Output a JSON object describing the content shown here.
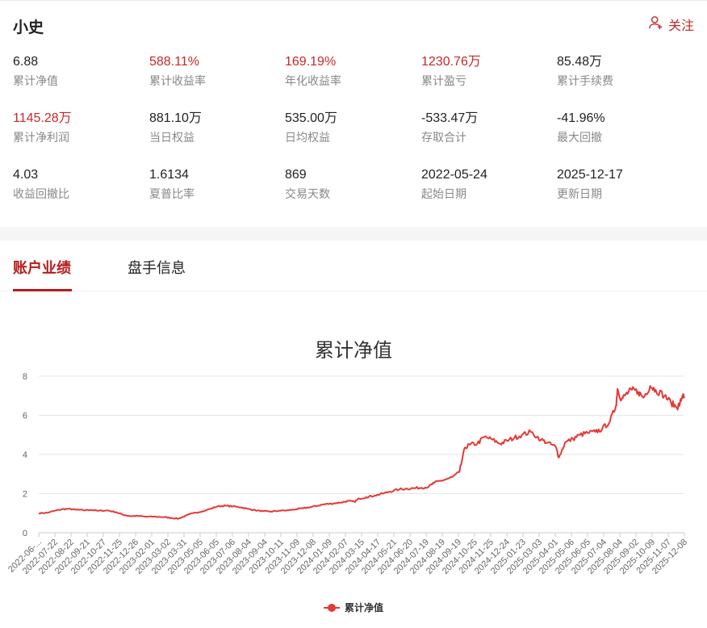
{
  "header": {
    "trader_name": "小史",
    "follow_label": "关注"
  },
  "stats": [
    {
      "value": "6.88",
      "label": "累计净值",
      "highlight": false
    },
    {
      "value": "588.11%",
      "label": "累计收益率",
      "highlight": true
    },
    {
      "value": "169.19%",
      "label": "年化收益率",
      "highlight": true
    },
    {
      "value": "1230.76万",
      "label": "累计盈亏",
      "highlight": true
    },
    {
      "value": "85.48万",
      "label": "累计手续费",
      "highlight": false
    },
    {
      "value": "1145.28万",
      "label": "累计净利润",
      "highlight": true
    },
    {
      "value": "881.10万",
      "label": "当日权益",
      "highlight": false
    },
    {
      "value": "535.00万",
      "label": "日均权益",
      "highlight": false
    },
    {
      "value": "-533.47万",
      "label": "存取合计",
      "highlight": false
    },
    {
      "value": "-41.96%",
      "label": "最大回撤",
      "highlight": false
    },
    {
      "value": "4.03",
      "label": "收益回撤比",
      "highlight": false
    },
    {
      "value": "1.6134",
      "label": "夏普比率",
      "highlight": false
    },
    {
      "value": "869",
      "label": "交易天数",
      "highlight": false
    },
    {
      "value": "2022-05-24",
      "label": "起始日期",
      "highlight": false
    },
    {
      "value": "2025-12-17",
      "label": "更新日期",
      "highlight": false
    }
  ],
  "tabs": [
    {
      "label": "账户业绩",
      "active": true
    },
    {
      "label": "盘手信息",
      "active": false
    }
  ],
  "colors": {
    "accent": "#b71c1c",
    "positive": "#c62828",
    "series": "#e53935"
  },
  "chart_data": {
    "type": "line",
    "title": "累计净值",
    "xlabel": "",
    "ylabel": "",
    "ylim": [
      0,
      8
    ],
    "yticks": [
      0,
      2,
      4,
      6,
      8
    ],
    "grid": true,
    "legend_position": "bottom",
    "x_tick_labels": [
      "2022-06-...",
      "2022-07-22",
      "2022-08-22",
      "2022-09-21",
      "2022-10-27",
      "2022-11-25",
      "2022-12-26",
      "2023-02-01",
      "2023-03-02",
      "2023-03-31",
      "2023-05-05",
      "2023-06-05",
      "2023-07-06",
      "2023-08-04",
      "2023-09-04",
      "2023-10-11",
      "2023-11-09",
      "2023-12-08",
      "2024-01-09",
      "2024-02-07",
      "2024-03-15",
      "2024-04-17",
      "2024-05-21",
      "2024-06-20",
      "2024-07-19",
      "2024-08-19",
      "2024-09-19",
      "2024-10-25",
      "2024-11-25",
      "2024-12-24",
      "2025-01-23",
      "2025-03-03",
      "2025-04-01",
      "2025-05-06",
      "2025-06-05",
      "2025-07-04",
      "2025-08-04",
      "2025-09-02",
      "2025-10-09",
      "2025-11-07",
      "2025-12-08"
    ],
    "series": [
      {
        "name": "累计净值",
        "points": [
          [
            "2022-05-24",
            1.0
          ],
          [
            "2022-06-10",
            1.02
          ],
          [
            "2022-06-25",
            1.12
          ],
          [
            "2022-07-10",
            1.2
          ],
          [
            "2022-07-22",
            1.22
          ],
          [
            "2022-08-05",
            1.18
          ],
          [
            "2022-08-22",
            1.15
          ],
          [
            "2022-09-05",
            1.17
          ],
          [
            "2022-09-21",
            1.12
          ],
          [
            "2022-10-10",
            1.14
          ],
          [
            "2022-10-27",
            1.05
          ],
          [
            "2022-11-10",
            0.92
          ],
          [
            "2022-11-25",
            0.85
          ],
          [
            "2022-12-10",
            0.86
          ],
          [
            "2022-12-26",
            0.82
          ],
          [
            "2023-01-15",
            0.82
          ],
          [
            "2023-02-01",
            0.8
          ],
          [
            "2023-02-15",
            0.76
          ],
          [
            "2023-03-02",
            0.72
          ],
          [
            "2023-03-15",
            0.85
          ],
          [
            "2023-03-31",
            1.0
          ],
          [
            "2023-04-20",
            1.1
          ],
          [
            "2023-05-05",
            1.22
          ],
          [
            "2023-05-20",
            1.35
          ],
          [
            "2023-06-05",
            1.38
          ],
          [
            "2023-06-20",
            1.35
          ],
          [
            "2023-07-06",
            1.3
          ],
          [
            "2023-07-20",
            1.22
          ],
          [
            "2023-08-04",
            1.15
          ],
          [
            "2023-08-20",
            1.1
          ],
          [
            "2023-09-04",
            1.08
          ],
          [
            "2023-09-20",
            1.12
          ],
          [
            "2023-10-11",
            1.15
          ],
          [
            "2023-10-25",
            1.2
          ],
          [
            "2023-11-09",
            1.25
          ],
          [
            "2023-11-25",
            1.32
          ],
          [
            "2023-12-08",
            1.38
          ],
          [
            "2023-12-20",
            1.45
          ],
          [
            "2024-01-09",
            1.5
          ],
          [
            "2024-01-25",
            1.55
          ],
          [
            "2024-02-07",
            1.62
          ],
          [
            "2024-02-20",
            1.58
          ],
          [
            "2024-03-01",
            1.75
          ],
          [
            "2024-03-15",
            1.82
          ],
          [
            "2024-04-01",
            1.9
          ],
          [
            "2024-04-17",
            2.0
          ],
          [
            "2024-05-01",
            2.1
          ],
          [
            "2024-05-21",
            2.22
          ],
          [
            "2024-06-05",
            2.25
          ],
          [
            "2024-06-20",
            2.28
          ],
          [
            "2024-07-05",
            2.3
          ],
          [
            "2024-07-19",
            2.35
          ],
          [
            "2024-07-30",
            2.55
          ],
          [
            "2024-08-19",
            2.7
          ],
          [
            "2024-09-05",
            2.85
          ],
          [
            "2024-09-19",
            3.1
          ],
          [
            "2024-09-30",
            4.35
          ],
          [
            "2024-10-10",
            4.5
          ],
          [
            "2024-10-25",
            4.55
          ],
          [
            "2024-11-08",
            4.9
          ],
          [
            "2024-11-25",
            4.75
          ],
          [
            "2024-12-10",
            4.55
          ],
          [
            "2024-12-24",
            4.7
          ],
          [
            "2025-01-08",
            4.85
          ],
          [
            "2025-01-23",
            5.0
          ],
          [
            "2025-02-10",
            5.15
          ],
          [
            "2025-03-03",
            4.75
          ],
          [
            "2025-03-15",
            4.6
          ],
          [
            "2025-04-01",
            4.4
          ],
          [
            "2025-04-08",
            3.85
          ],
          [
            "2025-04-20",
            4.6
          ],
          [
            "2025-05-06",
            4.8
          ],
          [
            "2025-05-20",
            5.0
          ],
          [
            "2025-06-05",
            5.1
          ],
          [
            "2025-06-20",
            5.15
          ],
          [
            "2025-07-04",
            5.3
          ],
          [
            "2025-07-20",
            5.7
          ],
          [
            "2025-08-01",
            6.5
          ],
          [
            "2025-08-04",
            7.35
          ],
          [
            "2025-08-12",
            6.8
          ],
          [
            "2025-08-20",
            7.05
          ],
          [
            "2025-09-02",
            7.3
          ],
          [
            "2025-09-15",
            7.2
          ],
          [
            "2025-09-25",
            6.9
          ],
          [
            "2025-10-09",
            7.5
          ],
          [
            "2025-10-20",
            7.3
          ],
          [
            "2025-11-07",
            7.0
          ],
          [
            "2025-11-20",
            6.65
          ],
          [
            "2025-12-02",
            6.4
          ],
          [
            "2025-12-08",
            6.6
          ],
          [
            "2025-12-13",
            7.0
          ],
          [
            "2025-12-17",
            6.88
          ]
        ]
      }
    ]
  }
}
